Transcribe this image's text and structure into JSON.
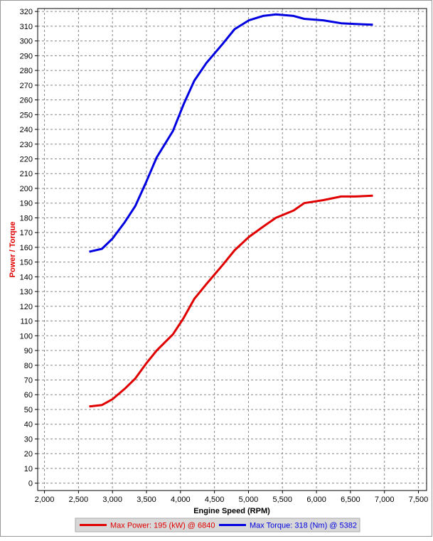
{
  "chart_data": {
    "type": "line",
    "x_label": "Engine Speed (RPM)",
    "y_label": "Power / Torque",
    "xlim": [
      1900,
      7620
    ],
    "ylim": [
      -5,
      322
    ],
    "xticks": [
      {
        "value": 2000,
        "label": "2,000"
      },
      {
        "value": 2500,
        "label": "2,500"
      },
      {
        "value": 3000,
        "label": "3,000"
      },
      {
        "value": 3500,
        "label": "3,500"
      },
      {
        "value": 4000,
        "label": "4,000"
      },
      {
        "value": 4500,
        "label": "4,500"
      },
      {
        "value": 5000,
        "label": "5,000"
      },
      {
        "value": 5500,
        "label": "5,500"
      },
      {
        "value": 6000,
        "label": "6,000"
      },
      {
        "value": 6500,
        "label": "6,500"
      },
      {
        "value": 7000,
        "label": "7,000"
      },
      {
        "value": 7500,
        "label": "7,500"
      }
    ],
    "yticks": [
      0,
      10,
      20,
      30,
      40,
      50,
      60,
      70,
      80,
      90,
      100,
      110,
      120,
      130,
      140,
      150,
      160,
      170,
      180,
      190,
      200,
      210,
      220,
      230,
      240,
      250,
      260,
      270,
      280,
      290,
      300,
      310,
      320
    ],
    "grid": true,
    "x": [
      2658,
      2845,
      3002,
      3180,
      3336,
      3493,
      3650,
      3890,
      4046,
      4203,
      4380,
      4620,
      4797,
      5006,
      5215,
      5403,
      5664,
      5820,
      6102,
      6363,
      6572,
      6830
    ],
    "series": [
      {
        "name": "Max Power: 195 (kW) @ 6840",
        "color": "#e00000",
        "values": [
          52,
          53,
          57,
          64,
          71,
          81,
          90,
          101,
          112,
          125,
          135,
          148,
          158,
          167,
          174,
          180,
          185,
          190,
          192,
          194.5,
          194.5,
          195
        ]
      },
      {
        "name": "Max Torque: 318 (Nm) @ 5382",
        "color": "#0000e0",
        "values": [
          157,
          159,
          166,
          177,
          188,
          204,
          221,
          239,
          257,
          273,
          285,
          298,
          308,
          314,
          317,
          318,
          317,
          315,
          314,
          312,
          311.5,
          311
        ]
      }
    ]
  }
}
